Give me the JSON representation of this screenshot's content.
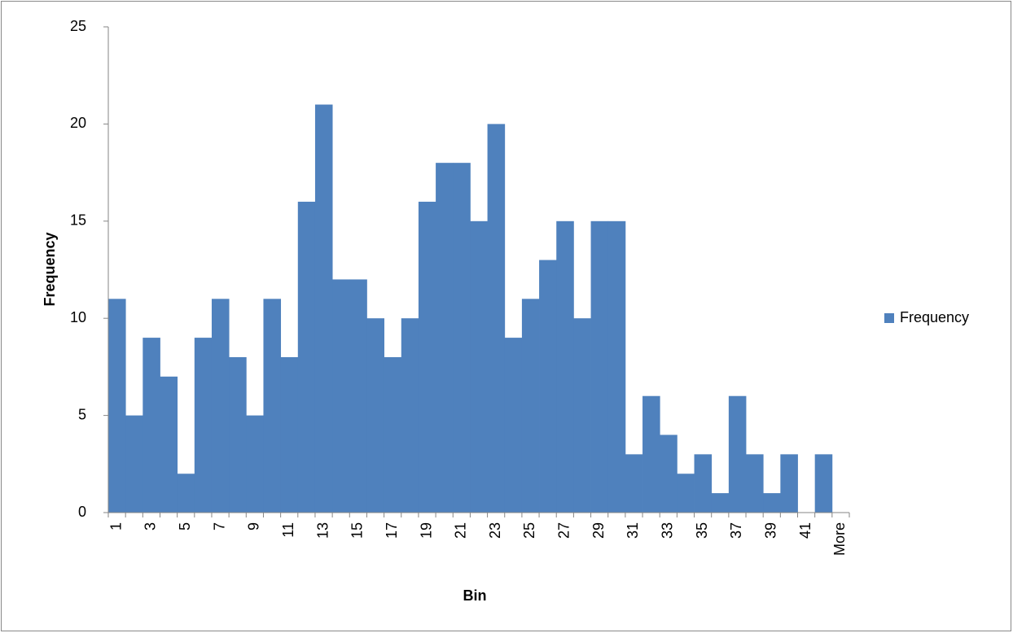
{
  "chart_data": {
    "type": "bar",
    "y_label": "Frequency",
    "x_label": "Bin",
    "categories": [
      "1",
      null,
      "3",
      null,
      "5",
      null,
      "7",
      null,
      "9",
      null,
      "11",
      null,
      "13",
      null,
      "15",
      null,
      "17",
      null,
      "19",
      null,
      "21",
      null,
      "23",
      null,
      "25",
      null,
      "27",
      null,
      "29",
      null,
      "31",
      null,
      "33",
      null,
      "35",
      null,
      "37",
      null,
      "39",
      null,
      "41",
      null,
      "More"
    ],
    "series": [
      {
        "name": "Frequency",
        "color": "#4f81bd",
        "values": [
          11,
          5,
          9,
          7,
          2,
          9,
          11,
          8,
          5,
          11,
          8,
          16,
          21,
          12,
          12,
          10,
          8,
          10,
          16,
          18,
          18,
          15,
          20,
          9,
          11,
          13,
          15,
          10,
          15,
          15,
          3,
          6,
          4,
          2,
          3,
          1,
          6,
          3,
          1,
          3,
          0,
          3,
          0
        ]
      }
    ],
    "ylim": [
      0,
      25
    ],
    "yticks": [
      0,
      5,
      10,
      15,
      20,
      25
    ],
    "grid": false,
    "legend": "right"
  }
}
